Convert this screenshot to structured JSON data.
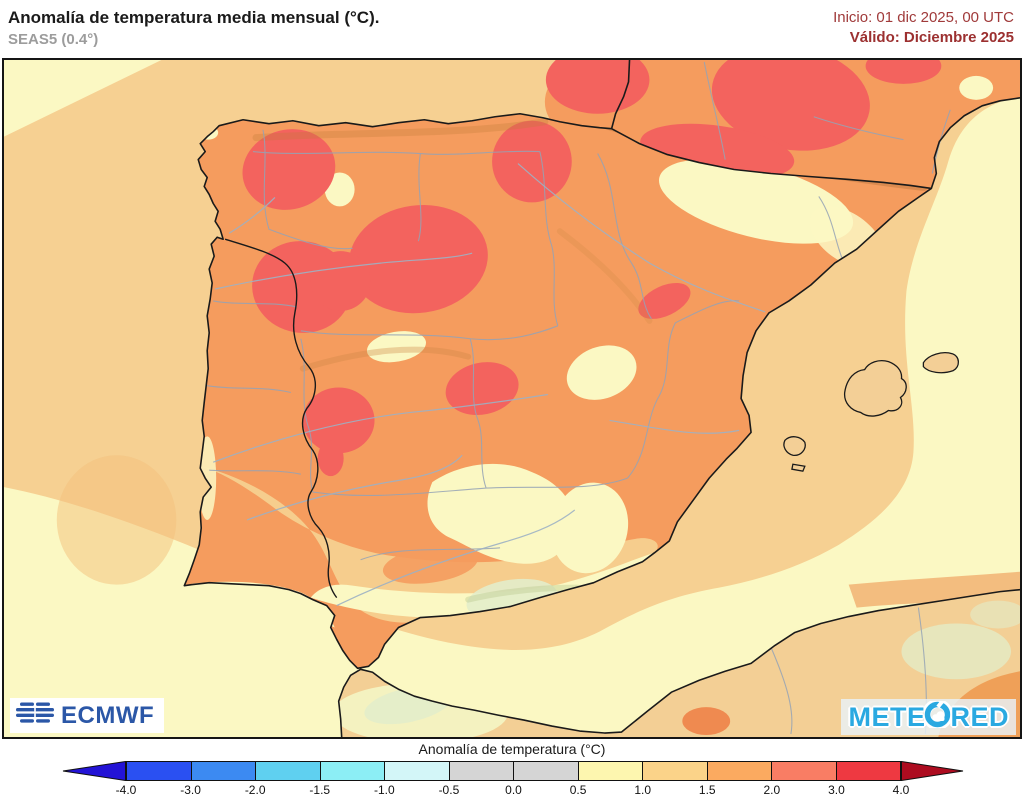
{
  "header": {
    "title": "Anomalía de temperatura media mensual (°C).",
    "subtitle": "SEAS5 (0.4°)",
    "init": "Inicio: 01 dic 2025, 00 UTC",
    "valid": "Válido: Diciembre 2025",
    "init_color": "#a03a3a",
    "valid_color": "#9c3030"
  },
  "branding": {
    "ecmwf": "ECMWF",
    "ecmwf_blue": "#2b57a7",
    "meteored_pre": "METE",
    "meteored_post": "RED",
    "meteored_blue": "#2aa9e1"
  },
  "legend": {
    "title": "Anomalía de temperatura (°C)",
    "ticks": [
      "-4.0",
      "-3.0",
      "-2.0",
      "-1.5",
      "-1.0",
      "-0.5",
      "0.0",
      "0.5",
      "1.0",
      "1.5",
      "2.0",
      "3.0",
      "4.0"
    ],
    "segments": [
      "#2a50f2",
      "#3c8af2",
      "#5fd0f0",
      "#8ceef5",
      "#d3f6f8",
      "#d5d5d5",
      "#d5d5d5",
      "#fdf6af",
      "#fbd389",
      "#fbaa60",
      "#f97d64",
      "#ee3941"
    ],
    "arrow_left": "#2313d6",
    "arrow_right": "#ad0c20"
  },
  "map_colors": {
    "sea_1_to_1_5": "#f6d092",
    "pale_0_5_to_1": "#fbf8c3",
    "orange_1_5_to_2": "#f59c5e",
    "red_2_to_3": "#f3635e",
    "tan_1_to_1_5_land": "#f6cd8d",
    "terrain_green_0_to_0_5": "#e3edca",
    "coastline": "#1a1a1a",
    "admin_boundary": "#95a3b5",
    "river": "#9db1c4"
  }
}
